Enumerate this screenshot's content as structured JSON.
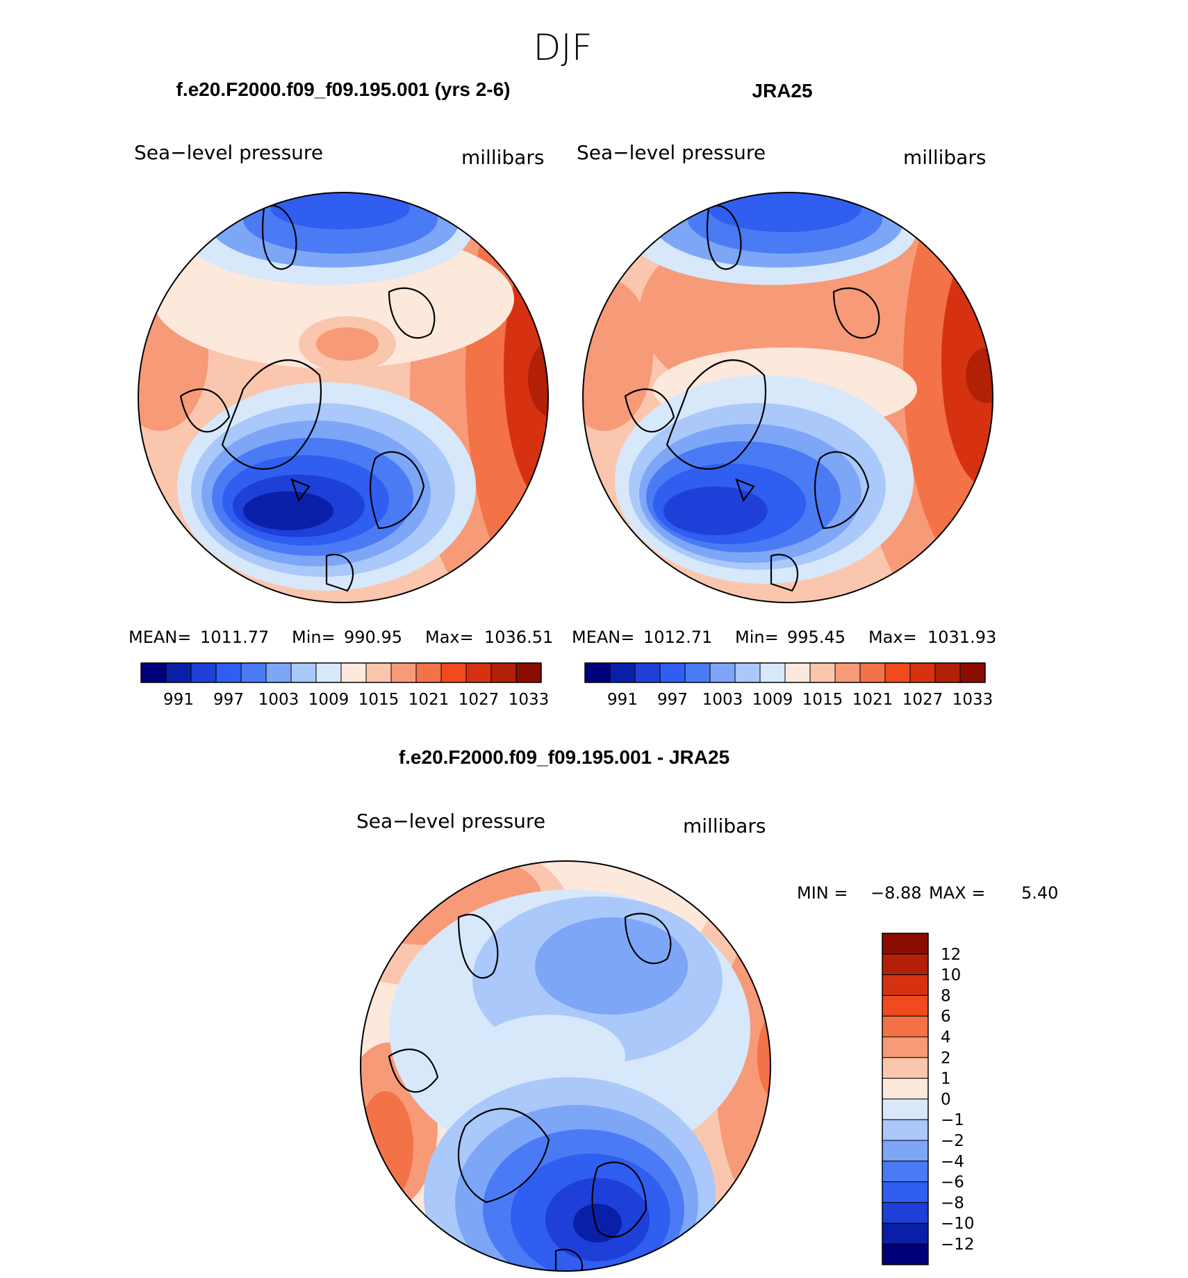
{
  "figure": {
    "title": "DJF"
  },
  "panels": [
    {
      "id": "model",
      "case_title": "f.e20.F2000.f09_f09.195.001 (yrs 2-6)",
      "variable": "Sea−level pressure",
      "units": "millibars",
      "stats": {
        "mean_label": "MEAN=",
        "mean": "1011.77",
        "min_label": "Min=",
        "min": "990.95",
        "max_label": "Max=",
        "max": "1036.51"
      },
      "colorbar": {
        "colors": [
          "#00007a",
          "#0a1fa8",
          "#1e40d8",
          "#2f5ef0",
          "#4a7bf5",
          "#7da6f7",
          "#aac8f9",
          "#d7e8fb",
          "#fde8dc",
          "#fbc6ae",
          "#f79a78",
          "#f47248",
          "#f04a1e",
          "#d63212",
          "#b32008",
          "#8a0d00"
        ],
        "labels": [
          "991",
          "997",
          "1003",
          "1009",
          "1015",
          "1021",
          "1027",
          "1033"
        ]
      }
    },
    {
      "id": "obs",
      "case_title": "JRA25",
      "variable": "Sea−level pressure",
      "units": "millibars",
      "stats": {
        "mean_label": "MEAN=",
        "mean": "1012.71",
        "min_label": "Min=",
        "min": "995.45",
        "max_label": "Max=",
        "max": "1031.93"
      },
      "colorbar": {
        "colors": [
          "#00007a",
          "#0a1fa8",
          "#1e40d8",
          "#2f5ef0",
          "#4a7bf5",
          "#7da6f7",
          "#aac8f9",
          "#d7e8fb",
          "#fde8dc",
          "#fbc6ae",
          "#f79a78",
          "#f47248",
          "#f04a1e",
          "#d63212",
          "#b32008",
          "#8a0d00"
        ],
        "labels": [
          "991",
          "997",
          "1003",
          "1009",
          "1015",
          "1021",
          "1027",
          "1033"
        ]
      }
    },
    {
      "id": "diff",
      "case_title": "f.e20.F2000.f09_f09.195.001 - JRA25",
      "variable": "Sea−level pressure",
      "units": "millibars",
      "stats": {
        "min_label": "MIN =",
        "min": "−8.88",
        "max_label": "MAX =",
        "max": "5.40"
      },
      "colorbar": {
        "colors": [
          "#00007a",
          "#0a1fa8",
          "#1e40d8",
          "#2f5ef0",
          "#4a7bf5",
          "#7da6f7",
          "#aac8f9",
          "#d7e8fb",
          "#fde8dc",
          "#fbc6ae",
          "#f79a78",
          "#f47248",
          "#f04a1e",
          "#d63212",
          "#b32008",
          "#8a0d00"
        ],
        "labels": [
          "12",
          "10",
          "8",
          "6",
          "4",
          "2",
          "1",
          "0",
          "−1",
          "−2",
          "−4",
          "−6",
          "−8",
          "−10",
          "−12"
        ]
      }
    }
  ]
}
